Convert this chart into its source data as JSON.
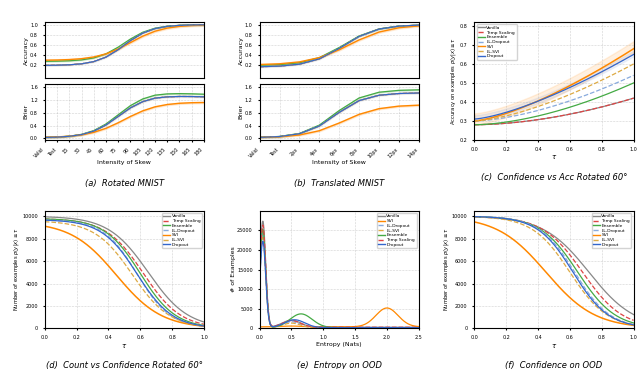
{
  "colors": {
    "vanilla": "#888888",
    "temp_scaling": "#dd4444",
    "ensemble": "#44aa44",
    "ll_dropout": "#88aadd",
    "svi": "#ff8800",
    "ll_svi": "#ddaa44",
    "dropout": "#3366cc"
  },
  "rotated_mnist_xticks": [
    "Valid",
    "Test",
    "15",
    "30",
    "45",
    "60",
    "75",
    "90",
    "105",
    "120",
    "135",
    "150",
    "165",
    "180"
  ],
  "translated_mnist_xticks": [
    "Valid",
    "Test",
    "2px",
    "4px",
    "6px",
    "8px",
    "10px",
    "12px",
    "14px"
  ],
  "caption_a": "(a)  Rotated MNIST",
  "caption_b": "(b)  Translated MNIST",
  "caption_c": "(c)  Confidence vs Acc Rotated 60°",
  "caption_d": "(d)  Count vs Confidence Rotated 60°",
  "caption_e": "(e)  Entropy on OOD",
  "caption_f": "(f)  Confidence on OOD"
}
